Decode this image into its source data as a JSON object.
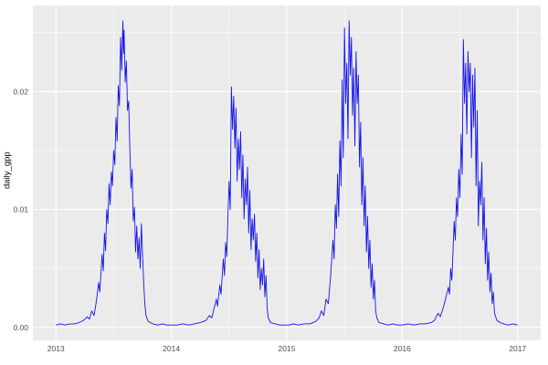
{
  "figure": {
    "ylabel": "daily_gpp"
  },
  "chart_data": {
    "type": "line",
    "title": "",
    "xlabel": "",
    "ylabel": "daily_gpp",
    "legend": "none",
    "grid": true,
    "xlim": [
      2012.8,
      2017.2
    ],
    "ylim": [
      -0.0011,
      0.0273
    ],
    "x_ticks": [
      {
        "value": 2013,
        "label": "2013"
      },
      {
        "value": 2014,
        "label": "2014"
      },
      {
        "value": 2015,
        "label": "2015"
      },
      {
        "value": 2016,
        "label": "2016"
      },
      {
        "value": 2017,
        "label": "2017"
      }
    ],
    "y_ticks": [
      {
        "value": 0.0,
        "label": "0.00"
      },
      {
        "value": 0.01,
        "label": "0.01"
      },
      {
        "value": 0.02,
        "label": "0.02"
      }
    ],
    "x_minor": [
      2013.5,
      2014.5,
      2015.5,
      2016.5
    ],
    "y_minor": [
      0.005,
      0.015,
      0.025
    ],
    "style": {
      "panel_bg": "#ebebeb",
      "grid_color": "#ffffff",
      "line_color": "#1414e8",
      "tick_label_color": "#4d4d4d",
      "axis_title_color": "#000000",
      "outer_bg": "#ffffff"
    },
    "series": [
      {
        "name": "daily_gpp",
        "points": [
          [
            2013.0,
            0.0002
          ],
          [
            2013.04,
            0.0003
          ],
          [
            2013.08,
            0.0002
          ],
          [
            2013.12,
            0.0003
          ],
          [
            2013.16,
            0.0003
          ],
          [
            2013.2,
            0.0004
          ],
          [
            2013.24,
            0.0006
          ],
          [
            2013.27,
            0.0009
          ],
          [
            2013.29,
            0.0007
          ],
          [
            2013.31,
            0.0014
          ],
          [
            2013.33,
            0.001
          ],
          [
            2013.35,
            0.0022
          ],
          [
            2013.37,
            0.0038
          ],
          [
            2013.38,
            0.003
          ],
          [
            2013.4,
            0.0062
          ],
          [
            2013.41,
            0.0048
          ],
          [
            2013.42,
            0.008
          ],
          [
            2013.43,
            0.0065
          ],
          [
            2013.44,
            0.01
          ],
          [
            2013.45,
            0.0088
          ],
          [
            2013.46,
            0.0122
          ],
          [
            2013.47,
            0.0104
          ],
          [
            2013.48,
            0.0132
          ],
          [
            2013.49,
            0.012
          ],
          [
            2013.5,
            0.015
          ],
          [
            2013.51,
            0.0138
          ],
          [
            2013.52,
            0.0178
          ],
          [
            2013.53,
            0.0158
          ],
          [
            2013.54,
            0.0205
          ],
          [
            2013.55,
            0.0188
          ],
          [
            2013.56,
            0.0246
          ],
          [
            2013.57,
            0.0218
          ],
          [
            2013.58,
            0.026
          ],
          [
            2013.585,
            0.0232
          ],
          [
            2013.59,
            0.0252
          ],
          [
            2013.6,
            0.0208
          ],
          [
            2013.61,
            0.0226
          ],
          [
            2013.62,
            0.0184
          ],
          [
            2013.63,
            0.0192
          ],
          [
            2013.64,
            0.0152
          ],
          [
            2013.65,
            0.0118
          ],
          [
            2013.66,
            0.0134
          ],
          [
            2013.67,
            0.009
          ],
          [
            2013.68,
            0.0102
          ],
          [
            2013.69,
            0.0064
          ],
          [
            2013.7,
            0.0086
          ],
          [
            2013.71,
            0.0058
          ],
          [
            2013.72,
            0.0076
          ],
          [
            2013.73,
            0.005
          ],
          [
            2013.74,
            0.0088
          ],
          [
            2013.75,
            0.0062
          ],
          [
            2013.76,
            0.0038
          ],
          [
            2013.77,
            0.002
          ],
          [
            2013.78,
            0.001
          ],
          [
            2013.8,
            0.0005
          ],
          [
            2013.84,
            0.0003
          ],
          [
            2013.88,
            0.0002
          ],
          [
            2013.92,
            0.0003
          ],
          [
            2013.96,
            0.0002
          ],
          [
            2014.0,
            0.0002
          ],
          [
            2014.05,
            0.0002
          ],
          [
            2014.1,
            0.0003
          ],
          [
            2014.15,
            0.0002
          ],
          [
            2014.2,
            0.0003
          ],
          [
            2014.25,
            0.0004
          ],
          [
            2014.3,
            0.0006
          ],
          [
            2014.33,
            0.001
          ],
          [
            2014.35,
            0.0008
          ],
          [
            2014.37,
            0.0016
          ],
          [
            2014.39,
            0.0024
          ],
          [
            2014.4,
            0.0018
          ],
          [
            2014.42,
            0.0036
          ],
          [
            2014.43,
            0.0028
          ],
          [
            2014.45,
            0.0058
          ],
          [
            2014.46,
            0.0044
          ],
          [
            2014.47,
            0.0072
          ],
          [
            2014.48,
            0.006
          ],
          [
            2014.49,
            0.0094
          ],
          [
            2014.5,
            0.0124
          ],
          [
            2014.51,
            0.01
          ],
          [
            2014.52,
            0.0204
          ],
          [
            2014.53,
            0.0168
          ],
          [
            2014.54,
            0.0196
          ],
          [
            2014.55,
            0.0152
          ],
          [
            2014.56,
            0.0186
          ],
          [
            2014.57,
            0.0124
          ],
          [
            2014.58,
            0.016
          ],
          [
            2014.59,
            0.0134
          ],
          [
            2014.6,
            0.0166
          ],
          [
            2014.61,
            0.011
          ],
          [
            2014.62,
            0.0146
          ],
          [
            2014.63,
            0.0092
          ],
          [
            2014.64,
            0.0126
          ],
          [
            2014.65,
            0.0104
          ],
          [
            2014.66,
            0.0136
          ],
          [
            2014.67,
            0.008
          ],
          [
            2014.68,
            0.0116
          ],
          [
            2014.69,
            0.0066
          ],
          [
            2014.7,
            0.0092
          ],
          [
            2014.71,
            0.0074
          ],
          [
            2014.72,
            0.0096
          ],
          [
            2014.73,
            0.0056
          ],
          [
            2014.74,
            0.008
          ],
          [
            2014.75,
            0.0042
          ],
          [
            2014.76,
            0.0066
          ],
          [
            2014.77,
            0.0032
          ],
          [
            2014.78,
            0.005
          ],
          [
            2014.79,
            0.0036
          ],
          [
            2014.8,
            0.0058
          ],
          [
            2014.81,
            0.0026
          ],
          [
            2014.82,
            0.0044
          ],
          [
            2014.83,
            0.0016
          ],
          [
            2014.84,
            0.0008
          ],
          [
            2014.86,
            0.0004
          ],
          [
            2014.9,
            0.0003
          ],
          [
            2014.94,
            0.0002
          ],
          [
            2014.98,
            0.0002
          ],
          [
            2015.02,
            0.0002
          ],
          [
            2015.06,
            0.0003
          ],
          [
            2015.1,
            0.0002
          ],
          [
            2015.15,
            0.0003
          ],
          [
            2015.2,
            0.0003
          ],
          [
            2015.25,
            0.0005
          ],
          [
            2015.28,
            0.0008
          ],
          [
            2015.3,
            0.0014
          ],
          [
            2015.32,
            0.001
          ],
          [
            2015.34,
            0.0024
          ],
          [
            2015.36,
            0.002
          ],
          [
            2015.38,
            0.0044
          ],
          [
            2015.4,
            0.0074
          ],
          [
            2015.41,
            0.0058
          ],
          [
            2015.42,
            0.0104
          ],
          [
            2015.43,
            0.0084
          ],
          [
            2015.44,
            0.013
          ],
          [
            2015.45,
            0.0094
          ],
          [
            2015.46,
            0.0158
          ],
          [
            2015.47,
            0.012
          ],
          [
            2015.48,
            0.021
          ],
          [
            2015.49,
            0.0144
          ],
          [
            2015.5,
            0.0254
          ],
          [
            2015.51,
            0.019
          ],
          [
            2015.52,
            0.0224
          ],
          [
            2015.53,
            0.016
          ],
          [
            2015.54,
            0.026
          ],
          [
            2015.55,
            0.0214
          ],
          [
            2015.56,
            0.0246
          ],
          [
            2015.57,
            0.018
          ],
          [
            2015.58,
            0.022
          ],
          [
            2015.59,
            0.0154
          ],
          [
            2015.6,
            0.0234
          ],
          [
            2015.61,
            0.019
          ],
          [
            2015.62,
            0.0214
          ],
          [
            2015.63,
            0.0136
          ],
          [
            2015.64,
            0.0174
          ],
          [
            2015.65,
            0.0104
          ],
          [
            2015.66,
            0.0144
          ],
          [
            2015.67,
            0.0086
          ],
          [
            2015.68,
            0.012
          ],
          [
            2015.69,
            0.0064
          ],
          [
            2015.7,
            0.0094
          ],
          [
            2015.71,
            0.005
          ],
          [
            2015.72,
            0.0074
          ],
          [
            2015.73,
            0.0034
          ],
          [
            2015.74,
            0.0054
          ],
          [
            2015.75,
            0.0024
          ],
          [
            2015.76,
            0.004
          ],
          [
            2015.77,
            0.0014
          ],
          [
            2015.78,
            0.0008
          ],
          [
            2015.8,
            0.0004
          ],
          [
            2015.84,
            0.0003
          ],
          [
            2015.88,
            0.0002
          ],
          [
            2015.92,
            0.0003
          ],
          [
            2015.96,
            0.0002
          ],
          [
            2016.0,
            0.0002
          ],
          [
            2016.05,
            0.0003
          ],
          [
            2016.1,
            0.0002
          ],
          [
            2016.15,
            0.0003
          ],
          [
            2016.2,
            0.0003
          ],
          [
            2016.25,
            0.0004
          ],
          [
            2016.28,
            0.0006
          ],
          [
            2016.31,
            0.0012
          ],
          [
            2016.33,
            0.0009
          ],
          [
            2016.36,
            0.0018
          ],
          [
            2016.38,
            0.0026
          ],
          [
            2016.4,
            0.0034
          ],
          [
            2016.41,
            0.0028
          ],
          [
            2016.42,
            0.005
          ],
          [
            2016.43,
            0.004
          ],
          [
            2016.44,
            0.0064
          ],
          [
            2016.45,
            0.009
          ],
          [
            2016.46,
            0.0074
          ],
          [
            2016.47,
            0.011
          ],
          [
            2016.48,
            0.0094
          ],
          [
            2016.49,
            0.0134
          ],
          [
            2016.5,
            0.011
          ],
          [
            2016.51,
            0.0164
          ],
          [
            2016.52,
            0.013
          ],
          [
            2016.53,
            0.0244
          ],
          [
            2016.54,
            0.019
          ],
          [
            2016.55,
            0.0224
          ],
          [
            2016.56,
            0.0164
          ],
          [
            2016.57,
            0.0234
          ],
          [
            2016.58,
            0.02
          ],
          [
            2016.59,
            0.0224
          ],
          [
            2016.6,
            0.0144
          ],
          [
            2016.61,
            0.0214
          ],
          [
            2016.62,
            0.017
          ],
          [
            2016.63,
            0.022
          ],
          [
            2016.64,
            0.012
          ],
          [
            2016.65,
            0.0184
          ],
          [
            2016.66,
            0.0086
          ],
          [
            2016.67,
            0.0124
          ],
          [
            2016.68,
            0.0104
          ],
          [
            2016.69,
            0.014
          ],
          [
            2016.7,
            0.0074
          ],
          [
            2016.71,
            0.011
          ],
          [
            2016.72,
            0.0054
          ],
          [
            2016.73,
            0.0084
          ],
          [
            2016.74,
            0.004
          ],
          [
            2016.75,
            0.0064
          ],
          [
            2016.76,
            0.003
          ],
          [
            2016.77,
            0.0046
          ],
          [
            2016.78,
            0.002
          ],
          [
            2016.79,
            0.003
          ],
          [
            2016.8,
            0.0012
          ],
          [
            2016.82,
            0.0006
          ],
          [
            2016.85,
            0.0004
          ],
          [
            2016.88,
            0.0003
          ],
          [
            2016.92,
            0.0002
          ],
          [
            2016.96,
            0.0003
          ],
          [
            2017.0,
            0.0002
          ]
        ]
      }
    ]
  }
}
